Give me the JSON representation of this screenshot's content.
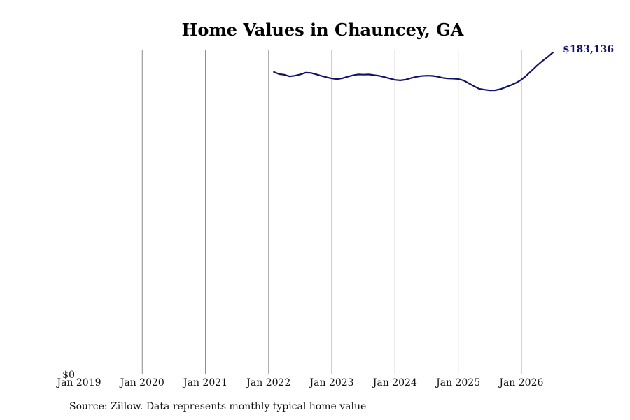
{
  "chart_data": {
    "type": "line",
    "title": "Home Values in Chauncey, GA",
    "xlabel": "",
    "ylabel": "",
    "x_ticks": [
      "Jan 2019",
      "Jan 2020",
      "Jan 2021",
      "Jan 2022",
      "Jan 2023",
      "Jan 2024",
      "Jan 2025",
      "Jan 2026"
    ],
    "y_ticks": [
      "$0"
    ],
    "xlim": [
      "2019-01",
      "2026-07"
    ],
    "ylim": [
      0,
      183136
    ],
    "grid": "vertical",
    "line_color": "#12126b",
    "series": [
      {
        "end_label": "$183,136",
        "x": [
          "2022-02",
          "2022-03",
          "2022-04",
          "2022-05",
          "2022-06",
          "2022-07",
          "2022-08",
          "2022-09",
          "2022-10",
          "2022-11",
          "2022-12",
          "2023-01",
          "2023-02",
          "2023-03",
          "2023-04",
          "2023-05",
          "2023-06",
          "2023-07",
          "2023-08",
          "2023-09",
          "2023-10",
          "2023-11",
          "2023-12",
          "2024-01",
          "2024-02",
          "2024-03",
          "2024-04",
          "2024-05",
          "2024-06",
          "2024-07",
          "2024-08",
          "2024-09",
          "2024-10",
          "2024-11",
          "2024-12",
          "2025-01",
          "2025-02",
          "2025-03",
          "2025-04",
          "2025-05",
          "2025-06",
          "2025-07",
          "2025-08",
          "2025-09",
          "2025-10",
          "2025-11",
          "2025-12",
          "2026-01",
          "2026-02",
          "2026-03",
          "2026-04",
          "2026-05",
          "2026-06",
          "2026-07"
        ],
        "values": [
          172000,
          170800,
          170400,
          169500,
          169900,
          170600,
          171600,
          171500,
          170700,
          169800,
          169000,
          168300,
          167900,
          168400,
          169300,
          170100,
          170600,
          170500,
          170600,
          170200,
          169800,
          169100,
          168300,
          167500,
          167200,
          167600,
          168500,
          169200,
          169700,
          169900,
          169800,
          169400,
          168700,
          168300,
          168200,
          168000,
          167200,
          165600,
          163900,
          162400,
          161900,
          161500,
          161600,
          162200,
          163300,
          164500,
          165800,
          167600,
          170100,
          172900,
          175700,
          178300,
          180600,
          183136
        ]
      }
    ]
  },
  "source_note": "Source: Zillow. Data represents monthly typical home value"
}
